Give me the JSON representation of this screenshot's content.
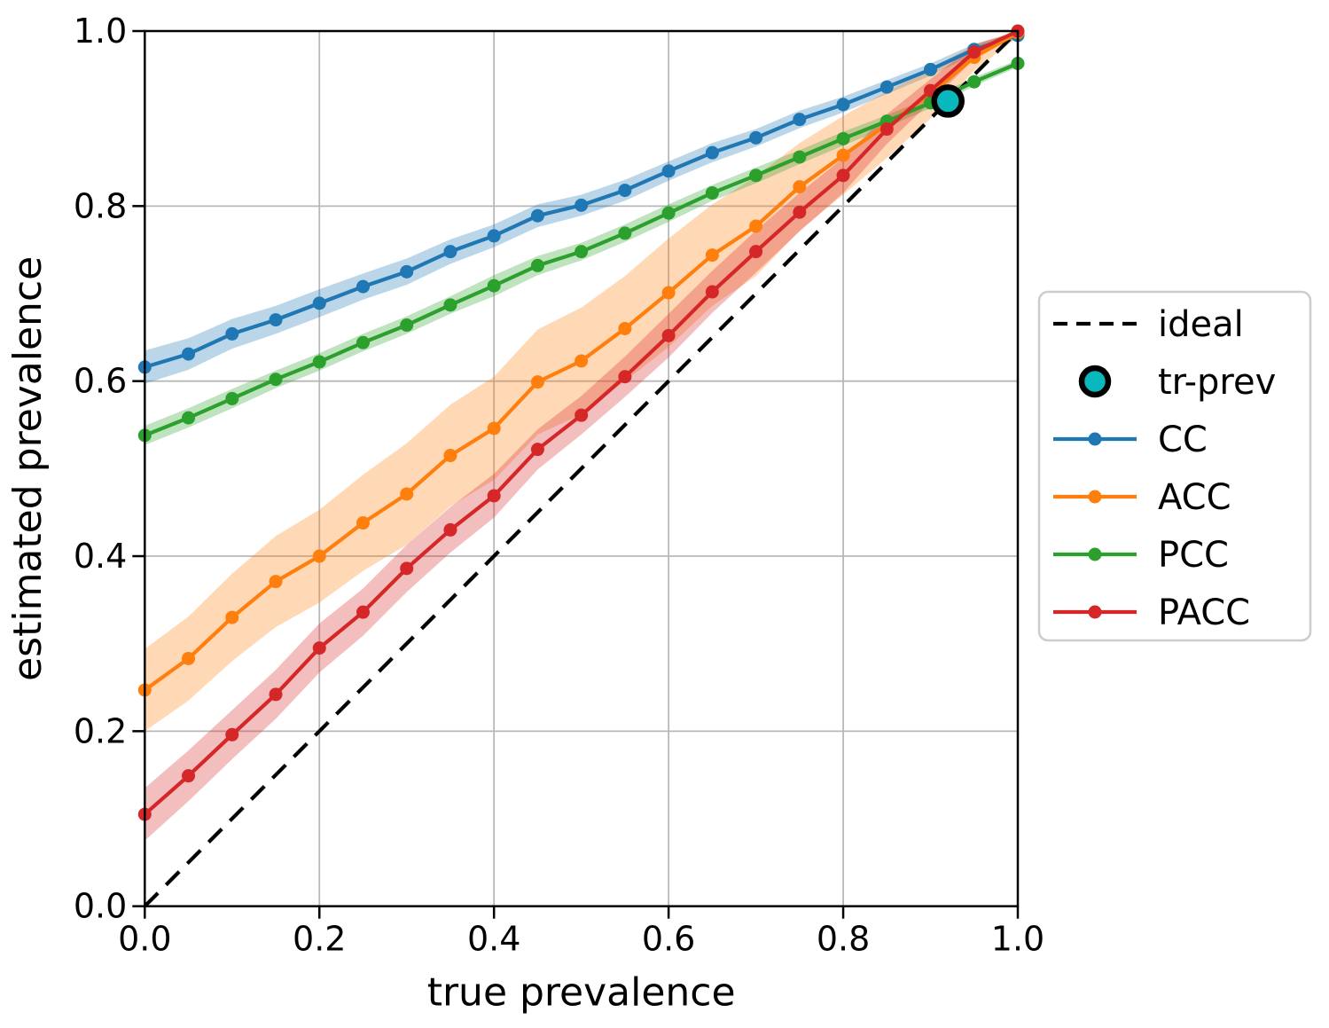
{
  "figure": {
    "background": "#ffffff"
  },
  "chart_data": {
    "type": "line",
    "title": "",
    "xlabel": "true prevalence",
    "ylabel": "estimated prevalence",
    "xlim": [
      0.0,
      1.0
    ],
    "ylim": [
      0.0,
      1.0
    ],
    "grid": true,
    "grid_color": "#b8b8b8",
    "spine_color": "#000000",
    "xticks": [
      0.0,
      0.2,
      0.4,
      0.6,
      0.8,
      1.0
    ],
    "yticks": [
      0.0,
      0.2,
      0.4,
      0.6,
      0.8,
      1.0
    ],
    "xtick_labels": [
      "0.0",
      "0.2",
      "0.4",
      "0.6",
      "0.8",
      "1.0"
    ],
    "ytick_labels": [
      "0.0",
      "0.2",
      "0.4",
      "0.6",
      "0.8",
      "1.0"
    ],
    "x": [
      0.0,
      0.05,
      0.1,
      0.15,
      0.2,
      0.25,
      0.3,
      0.35,
      0.4,
      0.45,
      0.5,
      0.55,
      0.6,
      0.65,
      0.7,
      0.75,
      0.8,
      0.85,
      0.9,
      0.95,
      1.0
    ],
    "series": [
      {
        "name": "CC",
        "color": "#1f77b4",
        "values": [
          0.616,
          0.631,
          0.654,
          0.67,
          0.689,
          0.708,
          0.725,
          0.748,
          0.766,
          0.789,
          0.801,
          0.818,
          0.84,
          0.861,
          0.878,
          0.899,
          0.916,
          0.936,
          0.956,
          0.979,
          0.995
        ],
        "band_halfwidth": [
          0.019,
          0.018,
          0.017,
          0.016,
          0.016,
          0.015,
          0.015,
          0.014,
          0.013,
          0.013,
          0.012,
          0.012,
          0.011,
          0.011,
          0.01,
          0.01,
          0.009,
          0.008,
          0.007,
          0.006,
          0.004
        ]
      },
      {
        "name": "ACC",
        "color": "#ff7f0e",
        "values": [
          0.247,
          0.283,
          0.33,
          0.371,
          0.4,
          0.438,
          0.471,
          0.515,
          0.546,
          0.599,
          0.623,
          0.66,
          0.701,
          0.744,
          0.777,
          0.822,
          0.858,
          0.893,
          0.928,
          0.97,
          0.998
        ],
        "band_halfwidth": [
          0.047,
          0.048,
          0.05,
          0.052,
          0.053,
          0.055,
          0.058,
          0.058,
          0.059,
          0.06,
          0.061,
          0.06,
          0.062,
          0.058,
          0.057,
          0.05,
          0.045,
          0.038,
          0.028,
          0.015,
          0.005
        ]
      },
      {
        "name": "PCC",
        "color": "#2ca02c",
        "values": [
          0.538,
          0.558,
          0.58,
          0.602,
          0.622,
          0.644,
          0.664,
          0.687,
          0.709,
          0.732,
          0.748,
          0.769,
          0.792,
          0.815,
          0.835,
          0.856,
          0.877,
          0.897,
          0.918,
          0.942,
          0.963
        ],
        "band_halfwidth": [
          0.011,
          0.011,
          0.011,
          0.01,
          0.01,
          0.01,
          0.01,
          0.01,
          0.012,
          0.011,
          0.01,
          0.01,
          0.01,
          0.009,
          0.009,
          0.008,
          0.008,
          0.007,
          0.006,
          0.005,
          0.004
        ]
      },
      {
        "name": "PACC",
        "color": "#d62728",
        "values": [
          0.105,
          0.149,
          0.196,
          0.242,
          0.295,
          0.336,
          0.386,
          0.43,
          0.469,
          0.522,
          0.561,
          0.605,
          0.652,
          0.702,
          0.748,
          0.793,
          0.835,
          0.888,
          0.932,
          0.976,
          1.0
        ],
        "band_halfwidth": [
          0.03,
          0.029,
          0.028,
          0.028,
          0.028,
          0.027,
          0.027,
          0.026,
          0.025,
          0.023,
          0.022,
          0.023,
          0.025,
          0.024,
          0.024,
          0.022,
          0.02,
          0.017,
          0.013,
          0.008,
          0.004
        ]
      }
    ],
    "band_opacity": 0.3,
    "ideal": {
      "label": "ideal",
      "color": "#000000",
      "style": "dashed",
      "from": [
        0.0,
        0.0
      ],
      "to": [
        1.0,
        1.0
      ]
    },
    "tr_prev": {
      "label": "tr-prev",
      "x": 0.92,
      "y": 0.92,
      "fill": "#09b8bd",
      "edge": "#000000"
    },
    "legend": {
      "position": "right",
      "border_color": "#cccccc",
      "entries": [
        {
          "label": "ideal",
          "type": "dash",
          "color": "#000000"
        },
        {
          "label": "tr-prev",
          "type": "circle",
          "color": "#09b8bd"
        },
        {
          "label": "CC",
          "type": "line",
          "color": "#1f77b4"
        },
        {
          "label": "ACC",
          "type": "line",
          "color": "#ff7f0e"
        },
        {
          "label": "PCC",
          "type": "line",
          "color": "#2ca02c"
        },
        {
          "label": "PACC",
          "type": "line",
          "color": "#d62728"
        }
      ]
    }
  }
}
